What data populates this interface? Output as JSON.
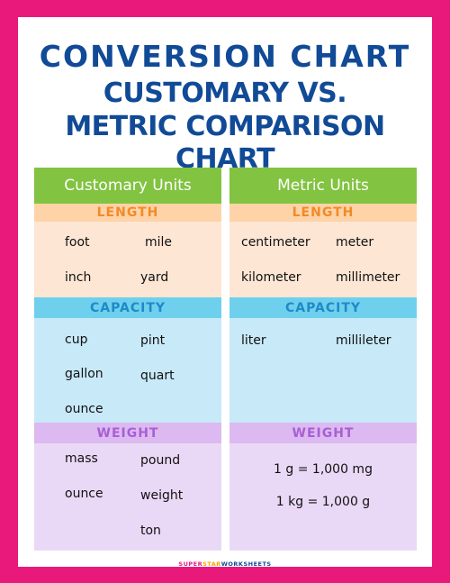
{
  "title": "CONVERSION CHART",
  "subtitle_line1": "CUSTOMARY VS.",
  "subtitle_line2": "METRIC COMPARISON CHART",
  "colors": {
    "frame": "#e9197c",
    "title": "#114a96",
    "header_green": "#82c341",
    "length": "#f28a27",
    "capacity": "#1f8ac9",
    "weight": "#a85fd4"
  },
  "customary": {
    "header": "Customary Units",
    "length_label": "LENGTH",
    "length_words": [
      "foot",
      "mile",
      "inch",
      "yard"
    ],
    "capacity_label": "CAPACITY",
    "capacity_words": [
      "cup",
      "pint",
      "gallon",
      "quart",
      "ounce"
    ],
    "weight_label": "WEIGHT",
    "weight_words": [
      "mass",
      "pound",
      "ounce",
      "weight",
      "ton"
    ]
  },
  "metric": {
    "header": "Metric Units",
    "length_label": "LENGTH",
    "length_words": [
      "centimeter",
      "meter",
      "kilometer",
      "millimeter"
    ],
    "capacity_label": "CAPACITY",
    "capacity_words": [
      "liter",
      "millileter"
    ],
    "weight_label": "WEIGHT",
    "weight_equivalences": [
      "1 g = 1,000 mg",
      "1 kg = 1,000 g"
    ]
  },
  "footer": {
    "part1": "SUPER",
    "part2": "STAR",
    "part3": "WORKSHEETS"
  }
}
